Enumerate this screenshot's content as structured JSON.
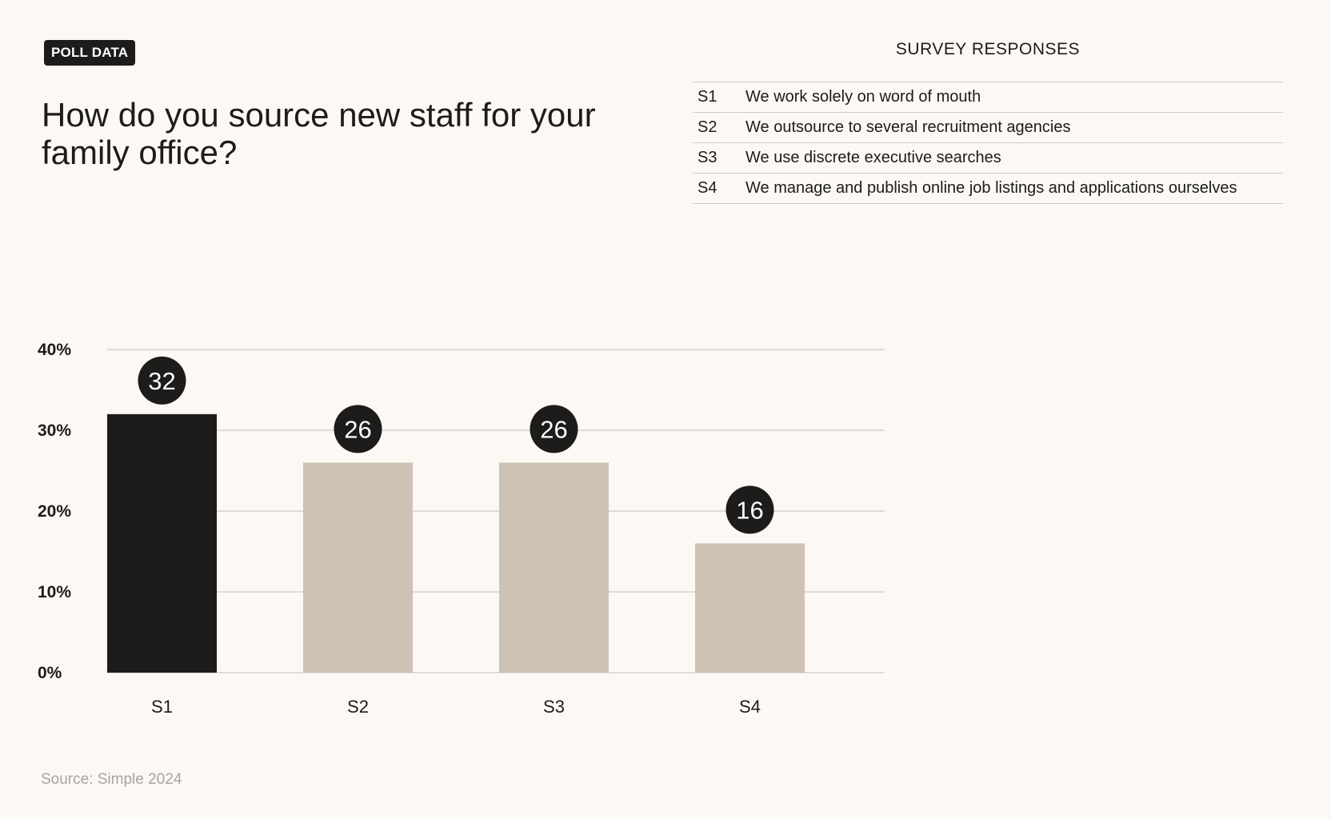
{
  "badge": "POLL DATA",
  "title": "How do you source new staff for your family office?",
  "legend": {
    "heading": "SURVEY RESPONSES",
    "items": [
      {
        "key": "S1",
        "text": "We work solely on word of mouth"
      },
      {
        "key": "S2",
        "text": "We outsource to several recruitment agencies"
      },
      {
        "key": "S3",
        "text": "We use discrete executive searches"
      },
      {
        "key": "S4",
        "text": "We manage and publish online job listings and applications ourselves"
      }
    ]
  },
  "source": "Source: Simple 2024",
  "colors": {
    "highlight": "#1d1c1b",
    "bar": "#cec2b5",
    "grid": "#d6d1cb",
    "label_bg": "#1d1c1b",
    "background": "#fcf8f4"
  },
  "chart_data": {
    "type": "bar",
    "categories": [
      "S1",
      "S2",
      "S3",
      "S4"
    ],
    "values": [
      32,
      26,
      26,
      16
    ],
    "value_labels": [
      "32",
      "26",
      "26",
      "16"
    ],
    "highlight_index": 0,
    "ylim": [
      0,
      40
    ],
    "yticks": [
      0,
      10,
      20,
      30,
      40
    ],
    "ytick_labels": [
      "0%",
      "10%",
      "20%",
      "30%",
      "40%"
    ],
    "grid": true,
    "xlabel": "",
    "ylabel": ""
  }
}
